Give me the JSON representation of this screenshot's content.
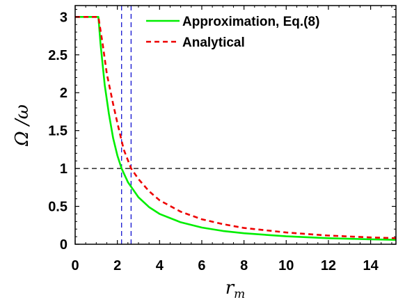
{
  "chart_data": {
    "type": "line",
    "title": "",
    "xlabel": "r",
    "xlabel_sub": "m",
    "ylabel": "Ω /ω",
    "xlim": [
      0,
      15.2
    ],
    "ylim": [
      0,
      3.15
    ],
    "xticks": [
      0,
      2,
      4,
      6,
      8,
      10,
      12,
      14
    ],
    "xtick_labels": [
      "0",
      "2",
      "4",
      "6",
      "8",
      "10",
      "12",
      "14"
    ],
    "yticks": [
      0,
      0.5,
      1,
      1.5,
      2,
      2.5,
      3
    ],
    "ytick_labels": [
      "0",
      "0.5",
      "1",
      "1.5",
      "2",
      "2.5",
      "3"
    ],
    "legend_position": "top-right",
    "grid": false,
    "series": [
      {
        "name": "Approximation, Eq.(8)",
        "color": "#00ee00",
        "style": "solid",
        "points": [
          [
            0,
            3.0
          ],
          [
            1.1,
            3.0
          ],
          [
            1.2,
            2.65
          ],
          [
            1.4,
            2.1
          ],
          [
            1.6,
            1.72
          ],
          [
            1.8,
            1.4
          ],
          [
            2.0,
            1.17
          ],
          [
            2.2,
            1.0
          ],
          [
            2.5,
            0.82
          ],
          [
            3.0,
            0.62
          ],
          [
            3.5,
            0.49
          ],
          [
            4.0,
            0.4
          ],
          [
            5.0,
            0.29
          ],
          [
            6.0,
            0.22
          ],
          [
            7.0,
            0.175
          ],
          [
            8.0,
            0.145
          ],
          [
            10.0,
            0.105
          ],
          [
            12.0,
            0.08
          ],
          [
            14.0,
            0.065
          ],
          [
            15.2,
            0.058
          ]
        ]
      },
      {
        "name": "Analytical",
        "color": "#ee0000",
        "style": "dashed",
        "points": [
          [
            0,
            3.0
          ],
          [
            1.1,
            3.0
          ],
          [
            1.3,
            2.65
          ],
          [
            1.5,
            2.25
          ],
          [
            1.8,
            1.85
          ],
          [
            2.0,
            1.6
          ],
          [
            2.3,
            1.25
          ],
          [
            2.65,
            1.0
          ],
          [
            3.0,
            0.86
          ],
          [
            3.5,
            0.7
          ],
          [
            4.0,
            0.58
          ],
          [
            5.0,
            0.43
          ],
          [
            6.0,
            0.33
          ],
          [
            7.0,
            0.265
          ],
          [
            8.0,
            0.215
          ],
          [
            10.0,
            0.155
          ],
          [
            12.0,
            0.115
          ],
          [
            14.0,
            0.09
          ],
          [
            15.2,
            0.08
          ]
        ]
      }
    ],
    "reference_lines": [
      {
        "orientation": "horizontal",
        "value": 1,
        "color": "#000000",
        "style": "dashed"
      },
      {
        "orientation": "vertical",
        "value": 2.2,
        "color": "#0000cc",
        "style": "dashed"
      },
      {
        "orientation": "vertical",
        "value": 2.65,
        "color": "#0000cc",
        "style": "dashed"
      }
    ]
  }
}
